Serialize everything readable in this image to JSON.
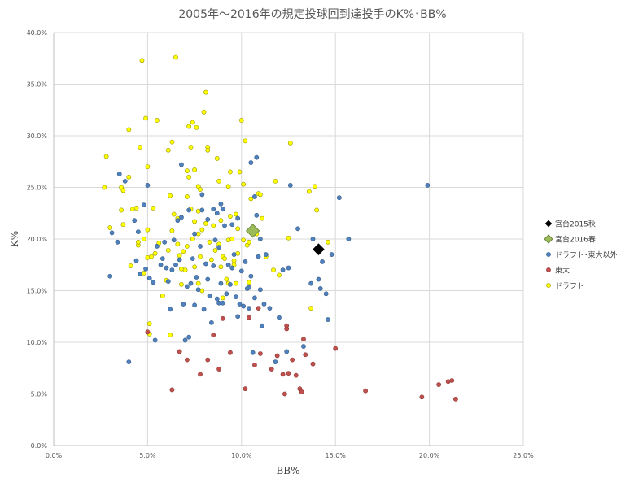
{
  "chart_data": {
    "type": "scatter",
    "title": "2005年～2016年の規定投球回到達投手のK%･BB%",
    "xlabel": "BB%",
    "ylabel": "K%",
    "xlim": [
      0,
      0.25
    ],
    "ylim": [
      0,
      0.4
    ],
    "x_ticks": [
      "0.0%",
      "5.0%",
      "10.0%",
      "15.0%",
      "20.0%",
      "25.0%"
    ],
    "y_ticks": [
      "0.0%",
      "5.0%",
      "10.0%",
      "15.0%",
      "20.0%",
      "25.0%",
      "30.0%",
      "35.0%",
      "40.0%"
    ],
    "grid": true,
    "legend_position": "right",
    "series": [
      {
        "name": "ドラフト",
        "color": "#ffff00",
        "stroke": "#999900",
        "marker": "circle",
        "points": [
          [
            0.027,
            0.25
          ],
          [
            0.028,
            0.28
          ],
          [
            0.03,
            0.211
          ],
          [
            0.036,
            0.228
          ],
          [
            0.036,
            0.25
          ],
          [
            0.037,
            0.247
          ],
          [
            0.037,
            0.214
          ],
          [
            0.04,
            0.306
          ],
          [
            0.04,
            0.26
          ],
          [
            0.041,
            0.174
          ],
          [
            0.042,
            0.229
          ],
          [
            0.044,
            0.23
          ],
          [
            0.045,
            0.194
          ],
          [
            0.045,
            0.197
          ],
          [
            0.046,
            0.289
          ],
          [
            0.047,
            0.373
          ],
          [
            0.048,
            0.167
          ],
          [
            0.048,
            0.2
          ],
          [
            0.049,
            0.317
          ],
          [
            0.05,
            0.209
          ],
          [
            0.05,
            0.182
          ],
          [
            0.05,
            0.27
          ],
          [
            0.051,
            0.118
          ],
          [
            0.051,
            0.108
          ],
          [
            0.052,
            0.183
          ],
          [
            0.053,
            0.23
          ],
          [
            0.054,
            0.186
          ],
          [
            0.055,
            0.315
          ],
          [
            0.056,
            0.196
          ],
          [
            0.058,
            0.145
          ],
          [
            0.06,
            0.16
          ],
          [
            0.061,
            0.286
          ],
          [
            0.061,
            0.189
          ],
          [
            0.062,
            0.242
          ],
          [
            0.062,
            0.107
          ],
          [
            0.063,
            0.294
          ],
          [
            0.063,
            0.208
          ],
          [
            0.064,
            0.224
          ],
          [
            0.065,
            0.376
          ],
          [
            0.066,
            0.22
          ],
          [
            0.066,
            0.195
          ],
          [
            0.067,
            0.184
          ],
          [
            0.068,
            0.171
          ],
          [
            0.068,
            0.156
          ],
          [
            0.069,
            0.188
          ],
          [
            0.07,
            0.17
          ],
          [
            0.071,
            0.193
          ],
          [
            0.071,
            0.266
          ],
          [
            0.071,
            0.241
          ],
          [
            0.072,
            0.309
          ],
          [
            0.072,
            0.26
          ],
          [
            0.073,
            0.289
          ],
          [
            0.073,
            0.229
          ],
          [
            0.074,
            0.2
          ],
          [
            0.074,
            0.313
          ],
          [
            0.075,
            0.267
          ],
          [
            0.075,
            0.217
          ],
          [
            0.075,
            0.173
          ],
          [
            0.076,
            0.308
          ],
          [
            0.077,
            0.205
          ],
          [
            0.077,
            0.251
          ],
          [
            0.077,
            0.227
          ],
          [
            0.077,
            0.157
          ],
          [
            0.078,
            0.248
          ],
          [
            0.078,
            0.183
          ],
          [
            0.079,
            0.209
          ],
          [
            0.079,
            0.15
          ],
          [
            0.08,
            0.323
          ],
          [
            0.081,
            0.342
          ],
          [
            0.081,
            0.215
          ],
          [
            0.082,
            0.289
          ],
          [
            0.082,
            0.286
          ],
          [
            0.083,
            0.197
          ],
          [
            0.084,
            0.18
          ],
          [
            0.085,
            0.213
          ],
          [
            0.086,
            0.189
          ],
          [
            0.087,
            0.278
          ],
          [
            0.088,
            0.256
          ],
          [
            0.088,
            0.195
          ],
          [
            0.089,
            0.218
          ],
          [
            0.089,
            0.173
          ],
          [
            0.09,
            0.183
          ],
          [
            0.09,
            0.143
          ],
          [
            0.091,
            0.181
          ],
          [
            0.092,
            0.161
          ],
          [
            0.093,
            0.251
          ],
          [
            0.093,
            0.199
          ],
          [
            0.093,
            0.157
          ],
          [
            0.094,
            0.265
          ],
          [
            0.094,
            0.222
          ],
          [
            0.095,
            0.2
          ],
          [
            0.096,
            0.179
          ],
          [
            0.096,
            0.175
          ],
          [
            0.097,
            0.224
          ],
          [
            0.097,
            0.157
          ],
          [
            0.098,
            0.21
          ],
          [
            0.098,
            0.186
          ],
          [
            0.099,
            0.265
          ],
          [
            0.1,
            0.315
          ],
          [
            0.101,
            0.253
          ],
          [
            0.101,
            0.199
          ],
          [
            0.102,
            0.295
          ],
          [
            0.103,
            0.194
          ],
          [
            0.104,
            0.197
          ],
          [
            0.104,
            0.158
          ],
          [
            0.105,
            0.239
          ],
          [
            0.106,
            0.21
          ],
          [
            0.108,
            0.205
          ],
          [
            0.109,
            0.244
          ],
          [
            0.11,
            0.243
          ],
          [
            0.111,
            0.22
          ],
          [
            0.113,
            0.183
          ],
          [
            0.117,
            0.17
          ],
          [
            0.118,
            0.256
          ],
          [
            0.12,
            0.165
          ],
          [
            0.125,
            0.201
          ],
          [
            0.126,
            0.293
          ],
          [
            0.136,
            0.246
          ],
          [
            0.137,
            0.133
          ],
          [
            0.139,
            0.251
          ],
          [
            0.14,
            0.228
          ],
          [
            0.146,
            0.197
          ]
        ]
      },
      {
        "name": "東大",
        "color": "#c0504d",
        "stroke": "#8c3836",
        "marker": "circle",
        "points": [
          [
            0.05,
            0.11
          ],
          [
            0.063,
            0.054
          ],
          [
            0.067,
            0.091
          ],
          [
            0.071,
            0.083
          ],
          [
            0.078,
            0.069
          ],
          [
            0.082,
            0.083
          ],
          [
            0.085,
            0.107
          ],
          [
            0.088,
            0.074
          ],
          [
            0.09,
            0.123
          ],
          [
            0.094,
            0.09
          ],
          [
            0.102,
            0.055
          ],
          [
            0.104,
            0.124
          ],
          [
            0.107,
            0.078
          ],
          [
            0.109,
            0.133
          ],
          [
            0.11,
            0.089
          ],
          [
            0.116,
            0.074
          ],
          [
            0.119,
            0.087
          ],
          [
            0.122,
            0.069
          ],
          [
            0.123,
            0.05
          ],
          [
            0.124,
            0.116
          ],
          [
            0.124,
            0.113
          ],
          [
            0.125,
            0.07
          ],
          [
            0.127,
            0.083
          ],
          [
            0.129,
            0.068
          ],
          [
            0.131,
            0.055
          ],
          [
            0.132,
            0.052
          ],
          [
            0.133,
            0.103
          ],
          [
            0.134,
            0.088
          ],
          [
            0.138,
            0.079
          ],
          [
            0.15,
            0.094
          ],
          [
            0.166,
            0.053
          ],
          [
            0.196,
            0.047
          ],
          [
            0.205,
            0.059
          ],
          [
            0.21,
            0.062
          ],
          [
            0.212,
            0.063
          ],
          [
            0.214,
            0.045
          ]
        ]
      },
      {
        "name": "ドラフト･東大以外",
        "color": "#4f81bd",
        "stroke": "#385d8a",
        "marker": "circle",
        "points": [
          [
            0.03,
            0.164
          ],
          [
            0.031,
            0.206
          ],
          [
            0.034,
            0.197
          ],
          [
            0.035,
            0.263
          ],
          [
            0.038,
            0.256
          ],
          [
            0.04,
            0.081
          ],
          [
            0.043,
            0.218
          ],
          [
            0.044,
            0.179
          ],
          [
            0.045,
            0.207
          ],
          [
            0.046,
            0.166
          ],
          [
            0.048,
            0.233
          ],
          [
            0.049,
            0.171
          ],
          [
            0.05,
            0.252
          ],
          [
            0.051,
            0.162
          ],
          [
            0.053,
            0.158
          ],
          [
            0.054,
            0.102
          ],
          [
            0.055,
            0.193
          ],
          [
            0.057,
            0.175
          ],
          [
            0.058,
            0.181
          ],
          [
            0.059,
            0.197
          ],
          [
            0.06,
            0.172
          ],
          [
            0.061,
            0.159
          ],
          [
            0.062,
            0.132
          ],
          [
            0.063,
            0.17
          ],
          [
            0.064,
            0.199
          ],
          [
            0.065,
            0.175
          ],
          [
            0.066,
            0.218
          ],
          [
            0.067,
            0.18
          ],
          [
            0.068,
            0.221
          ],
          [
            0.068,
            0.272
          ],
          [
            0.069,
            0.137
          ],
          [
            0.07,
            0.102
          ],
          [
            0.071,
            0.154
          ],
          [
            0.072,
            0.228
          ],
          [
            0.072,
            0.105
          ],
          [
            0.073,
            0.157
          ],
          [
            0.074,
            0.181
          ],
          [
            0.075,
            0.136
          ],
          [
            0.075,
            0.205
          ],
          [
            0.076,
            0.163
          ],
          [
            0.077,
            0.151
          ],
          [
            0.078,
            0.193
          ],
          [
            0.079,
            0.228
          ],
          [
            0.079,
            0.243
          ],
          [
            0.08,
            0.132
          ],
          [
            0.081,
            0.176
          ],
          [
            0.082,
            0.219
          ],
          [
            0.082,
            0.161
          ],
          [
            0.083,
            0.145
          ],
          [
            0.084,
            0.119
          ],
          [
            0.085,
            0.229
          ],
          [
            0.085,
            0.174
          ],
          [
            0.086,
            0.199
          ],
          [
            0.087,
            0.225
          ],
          [
            0.087,
            0.142
          ],
          [
            0.088,
            0.192
          ],
          [
            0.088,
            0.138
          ],
          [
            0.089,
            0.234
          ],
          [
            0.089,
            0.157
          ],
          [
            0.09,
            0.229
          ],
          [
            0.09,
            0.138
          ],
          [
            0.091,
            0.213
          ],
          [
            0.092,
            0.147
          ],
          [
            0.093,
            0.175
          ],
          [
            0.094,
            0.156
          ],
          [
            0.095,
            0.214
          ],
          [
            0.095,
            0.172
          ],
          [
            0.096,
            0.185
          ],
          [
            0.097,
            0.144
          ],
          [
            0.098,
            0.125
          ],
          [
            0.098,
            0.22
          ],
          [
            0.099,
            0.137
          ],
          [
            0.1,
            0.169
          ],
          [
            0.101,
            0.135
          ],
          [
            0.102,
            0.178
          ],
          [
            0.103,
            0.152
          ],
          [
            0.104,
            0.153
          ],
          [
            0.104,
            0.133
          ],
          [
            0.105,
            0.274
          ],
          [
            0.105,
            0.164
          ],
          [
            0.106,
            0.09
          ],
          [
            0.107,
            0.241
          ],
          [
            0.107,
            0.143
          ],
          [
            0.108,
            0.279
          ],
          [
            0.108,
            0.223
          ],
          [
            0.109,
            0.183
          ],
          [
            0.11,
            0.151
          ],
          [
            0.11,
            0.2
          ],
          [
            0.111,
            0.116
          ],
          [
            0.112,
            0.137
          ],
          [
            0.113,
            0.185
          ],
          [
            0.115,
            0.133
          ],
          [
            0.118,
            0.081
          ],
          [
            0.12,
            0.124
          ],
          [
            0.122,
            0.17
          ],
          [
            0.124,
            0.091
          ],
          [
            0.125,
            0.172
          ],
          [
            0.126,
            0.252
          ],
          [
            0.13,
            0.21
          ],
          [
            0.133,
            0.096
          ],
          [
            0.137,
            0.157
          ],
          [
            0.138,
            0.2
          ],
          [
            0.141,
            0.161
          ],
          [
            0.142,
            0.152
          ],
          [
            0.143,
            0.178
          ],
          [
            0.145,
            0.147
          ],
          [
            0.146,
            0.122
          ],
          [
            0.148,
            0.185
          ],
          [
            0.152,
            0.24
          ],
          [
            0.157,
            0.2
          ],
          [
            0.199,
            0.252
          ]
        ]
      },
      {
        "name": "宮台2016春",
        "color": "#9bbb59",
        "stroke": "#71893f",
        "marker": "diamond",
        "points": [
          [
            0.106,
            0.208
          ]
        ]
      },
      {
        "name": "宮台2015秋",
        "color": "#000000",
        "stroke": "#000000",
        "marker": "diamond",
        "points": [
          [
            0.141,
            0.19
          ]
        ]
      }
    ],
    "legend_order": [
      "宮台2015秋",
      "宮台2016春",
      "ドラフト･東大以外",
      "東大",
      "ドラフト"
    ]
  }
}
